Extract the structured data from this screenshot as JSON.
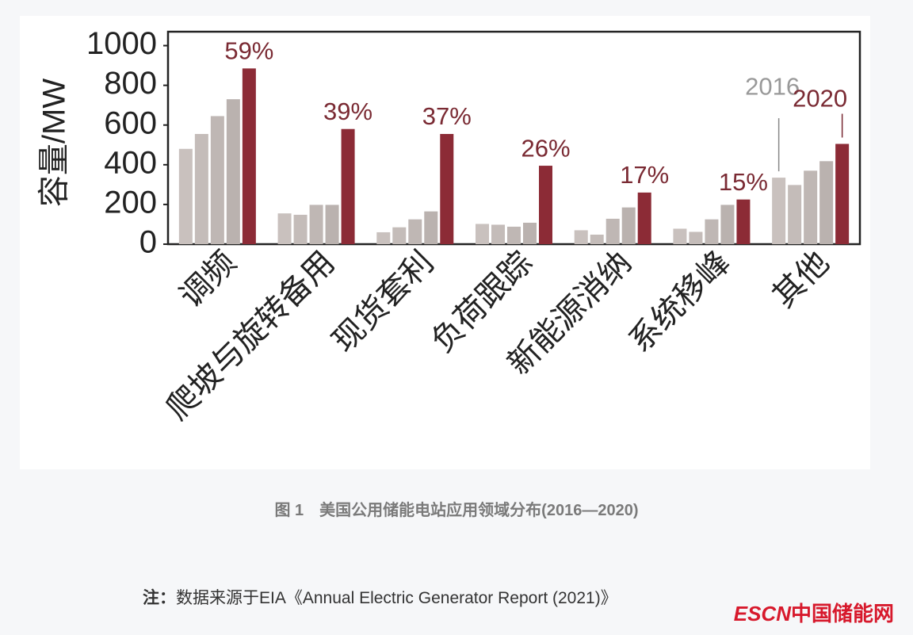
{
  "chart_data": {
    "type": "bar",
    "y_label": "容量/MW",
    "categories": [
      "调频",
      "爬坡与旋转备用",
      "现货套利",
      "负荷跟踪",
      "新能源消纳",
      "系统移峰",
      "其他"
    ],
    "series": [
      {
        "name": "2016",
        "color": "#c9c1be",
        "values": [
          480,
          155,
          60,
          102,
          70,
          78,
          335
        ]
      },
      {
        "color": "#c4bcb9",
        "values": [
          555,
          148,
          85,
          98,
          48,
          62,
          298
        ]
      },
      {
        "color": "#bfb7b4",
        "values": [
          645,
          198,
          125,
          88,
          128,
          125,
          370
        ]
      },
      {
        "color": "#bab2af",
        "values": [
          730,
          198,
          165,
          108,
          185,
          198,
          418
        ]
      },
      {
        "name": "2020",
        "color": "#8c2b36",
        "values": [
          885,
          580,
          555,
          395,
          260,
          225,
          505
        ]
      }
    ],
    "annotations": [
      "59%",
      "39%",
      "37%",
      "26%",
      "17%",
      "15%"
    ],
    "ylim": [
      0,
      1070
    ],
    "yticks": [
      0,
      200,
      400,
      600,
      800,
      1000
    ],
    "grid": false
  },
  "caption": "图 1　美国公用储能电站应用领域分布(2016—2020)",
  "note_label": "注：",
  "note": "数据来源于EIA《Annual Electric Generator Report (2021)》",
  "watermark_brand": "ESCN",
  "watermark_site": "中国储能网"
}
